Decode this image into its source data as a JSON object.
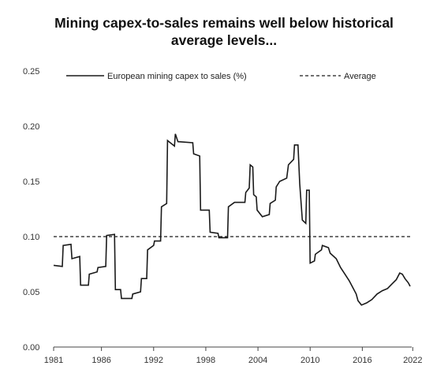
{
  "chart_data": {
    "type": "line",
    "title_lines": [
      "Mining capex-to-sales remains well below historical",
      "average levels..."
    ],
    "xlabel": "",
    "ylabel": "",
    "xlim": [
      1981,
      2022
    ],
    "ylim": [
      0,
      0.25
    ],
    "x_ticks": [
      "1981",
      "1986",
      "1992",
      "1998",
      "2004",
      "2010",
      "2016",
      "2022"
    ],
    "x_tick_values": [
      1981,
      1986.5,
      1992.5,
      1998.5,
      2004.5,
      2010.5,
      2016.5,
      2022.3
    ],
    "y_ticks": [
      "0.00",
      "0.05",
      "0.10",
      "0.15",
      "0.20",
      "0.25"
    ],
    "y_tick_values": [
      0,
      0.05,
      0.1,
      0.15,
      0.2,
      0.25
    ],
    "grid": false,
    "legend_position": "top",
    "series": [
      {
        "name": "European mining capex to sales (%)",
        "style": "solid-step",
        "points": [
          [
            1981.0,
            0.074
          ],
          [
            1982.0,
            0.073
          ],
          [
            1982.1,
            0.092
          ],
          [
            1983.0,
            0.093
          ],
          [
            1983.1,
            0.08
          ],
          [
            1984.0,
            0.082
          ],
          [
            1984.1,
            0.056
          ],
          [
            1985.0,
            0.056
          ],
          [
            1985.1,
            0.066
          ],
          [
            1986.0,
            0.068
          ],
          [
            1986.1,
            0.072
          ],
          [
            1987.0,
            0.073
          ],
          [
            1987.1,
            0.101
          ],
          [
            1988.0,
            0.102
          ],
          [
            1988.1,
            0.052
          ],
          [
            1988.7,
            0.052
          ],
          [
            1988.8,
            0.044
          ],
          [
            1990.0,
            0.044
          ],
          [
            1990.1,
            0.048
          ],
          [
            1991.0,
            0.05
          ],
          [
            1991.1,
            0.062
          ],
          [
            1991.7,
            0.062
          ],
          [
            1991.8,
            0.088
          ],
          [
            1992.5,
            0.092
          ],
          [
            1992.6,
            0.096
          ],
          [
            1993.3,
            0.096
          ],
          [
            1993.4,
            0.127
          ],
          [
            1994.0,
            0.13
          ],
          [
            1994.1,
            0.187
          ],
          [
            1994.9,
            0.182
          ],
          [
            1995.0,
            0.193
          ],
          [
            1995.3,
            0.186
          ],
          [
            1997.0,
            0.185
          ],
          [
            1997.1,
            0.175
          ],
          [
            1997.8,
            0.173
          ],
          [
            1997.9,
            0.124
          ],
          [
            1998.9,
            0.124
          ],
          [
            1999.0,
            0.104
          ],
          [
            1999.9,
            0.103
          ],
          [
            2000.0,
            0.099
          ],
          [
            2001.0,
            0.099
          ],
          [
            2001.1,
            0.127
          ],
          [
            2001.8,
            0.131
          ],
          [
            2003.0,
            0.131
          ],
          [
            2003.1,
            0.14
          ],
          [
            2003.5,
            0.144
          ],
          [
            2003.6,
            0.165
          ],
          [
            2003.9,
            0.163
          ],
          [
            2004.0,
            0.138
          ],
          [
            2004.3,
            0.136
          ],
          [
            2004.4,
            0.124
          ],
          [
            2005.0,
            0.118
          ],
          [
            2005.8,
            0.12
          ],
          [
            2005.9,
            0.13
          ],
          [
            2006.5,
            0.133
          ],
          [
            2006.6,
            0.145
          ],
          [
            2007.0,
            0.15
          ],
          [
            2007.8,
            0.153
          ],
          [
            2008.0,
            0.165
          ],
          [
            2008.6,
            0.17
          ],
          [
            2008.7,
            0.183
          ],
          [
            2009.1,
            0.183
          ],
          [
            2009.3,
            0.148
          ],
          [
            2009.6,
            0.115
          ],
          [
            2010.0,
            0.112
          ],
          [
            2010.1,
            0.142
          ],
          [
            2010.4,
            0.142
          ],
          [
            2010.5,
            0.076
          ],
          [
            2011.0,
            0.078
          ],
          [
            2011.1,
            0.084
          ],
          [
            2011.8,
            0.088
          ],
          [
            2011.9,
            0.092
          ],
          [
            2012.6,
            0.09
          ],
          [
            2012.8,
            0.085
          ],
          [
            2013.5,
            0.08
          ],
          [
            2014.0,
            0.072
          ],
          [
            2014.5,
            0.066
          ],
          [
            2015.0,
            0.06
          ],
          [
            2015.4,
            0.054
          ],
          [
            2015.8,
            0.048
          ],
          [
            2016.0,
            0.042
          ],
          [
            2016.4,
            0.038
          ],
          [
            2017.0,
            0.04
          ],
          [
            2017.6,
            0.043
          ],
          [
            2018.2,
            0.048
          ],
          [
            2018.8,
            0.051
          ],
          [
            2019.4,
            0.053
          ],
          [
            2019.9,
            0.057
          ],
          [
            2020.4,
            0.061
          ],
          [
            2020.8,
            0.067
          ],
          [
            2021.1,
            0.066
          ],
          [
            2021.4,
            0.062
          ],
          [
            2021.8,
            0.058
          ],
          [
            2022.0,
            0.055
          ]
        ]
      },
      {
        "name": "Average",
        "style": "dashed",
        "points": [
          [
            1981.0,
            0.1
          ],
          [
            2022.0,
            0.1
          ]
        ]
      }
    ]
  },
  "colors": {
    "line": "#1a1a1a",
    "axis": "#444444",
    "text": "#333333"
  }
}
